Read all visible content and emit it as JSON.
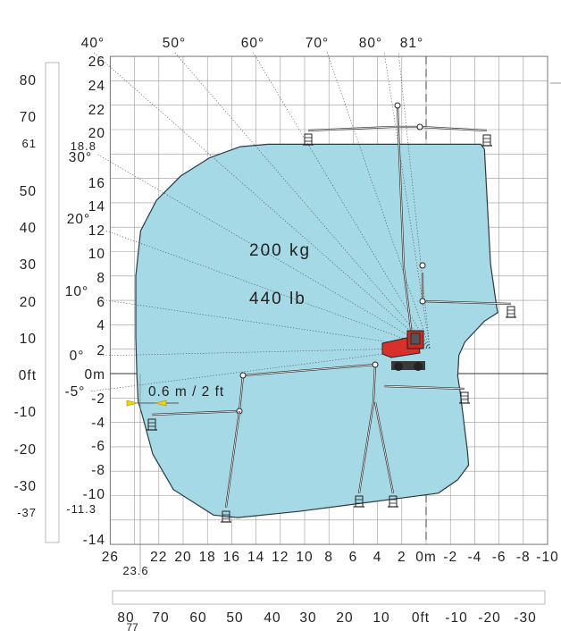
{
  "chart_data": {
    "type": "area",
    "title": "",
    "load_label_kg": "200 kg",
    "load_label_lb": "440 lb",
    "outreach_note": "0.6 m / 2 ft",
    "x_axis_m": {
      "min": -10,
      "max": 26,
      "tick_labels": [
        "26",
        "22",
        "20",
        "18",
        "16",
        "14",
        "12",
        "10",
        "8",
        "6",
        "4",
        "2",
        "0m",
        "-2",
        "-4",
        "-6",
        "-8",
        "-10"
      ],
      "extra_label": "23.6"
    },
    "x_axis_ft": {
      "tick_labels": [
        "80",
        "70",
        "60",
        "50",
        "40",
        "30",
        "20",
        "10",
        "0ft",
        "-10",
        "-20",
        "-30"
      ],
      "extra_label": "77"
    },
    "y_axis_m": {
      "min": -14,
      "max": 26,
      "tick_labels": [
        "26",
        "24",
        "22",
        "20",
        "18.8",
        "16",
        "14",
        "12",
        "10",
        "8",
        "6",
        "4",
        "2",
        "0m",
        "-2",
        "-4",
        "-6",
        "-8",
        "-10",
        "-11.3",
        "-14"
      ]
    },
    "y_axis_ft": {
      "tick_labels": [
        "80",
        "70",
        "61",
        "50",
        "40",
        "30",
        "20",
        "10",
        "0ft",
        "-10",
        "-20",
        "-30",
        "-37"
      ]
    },
    "angle_labels": [
      "40°",
      "50°",
      "60°",
      "70°",
      "80°",
      "81°",
      "30°",
      "20°",
      "10°",
      "0°",
      "-5°"
    ],
    "envelope_m": [
      [
        9.5,
        18.8
      ],
      [
        -4.5,
        18.8
      ],
      [
        -4.8,
        18.4
      ],
      [
        -5.3,
        9
      ],
      [
        -5.8,
        5.5
      ],
      [
        -5.9,
        5
      ],
      [
        -4.8,
        4.3
      ],
      [
        -3.2,
        2.6
      ],
      [
        -2.7,
        1.5
      ],
      [
        -2.6,
        -0.2
      ],
      [
        -2.8,
        -1.5
      ],
      [
        -3.4,
        -6.3
      ],
      [
        -3.5,
        -7.5
      ],
      [
        -2.6,
        -8.7
      ],
      [
        -1.0,
        -9.8
      ],
      [
        10.5,
        -11.3
      ],
      [
        15.5,
        -11.8
      ],
      [
        17.5,
        -11.6
      ],
      [
        20.8,
        -9.5
      ],
      [
        22.5,
        -6.6
      ],
      [
        23.4,
        -3.3
      ],
      [
        23.7,
        -2.3
      ],
      [
        23.8,
        -0.3
      ],
      [
        23.9,
        3
      ],
      [
        23.9,
        8
      ],
      [
        23.5,
        11.7
      ],
      [
        22.2,
        14.2
      ],
      [
        20.2,
        16.2
      ],
      [
        17.8,
        17.7
      ],
      [
        15.3,
        18.6
      ],
      [
        13,
        18.8
      ]
    ],
    "grid": true
  }
}
